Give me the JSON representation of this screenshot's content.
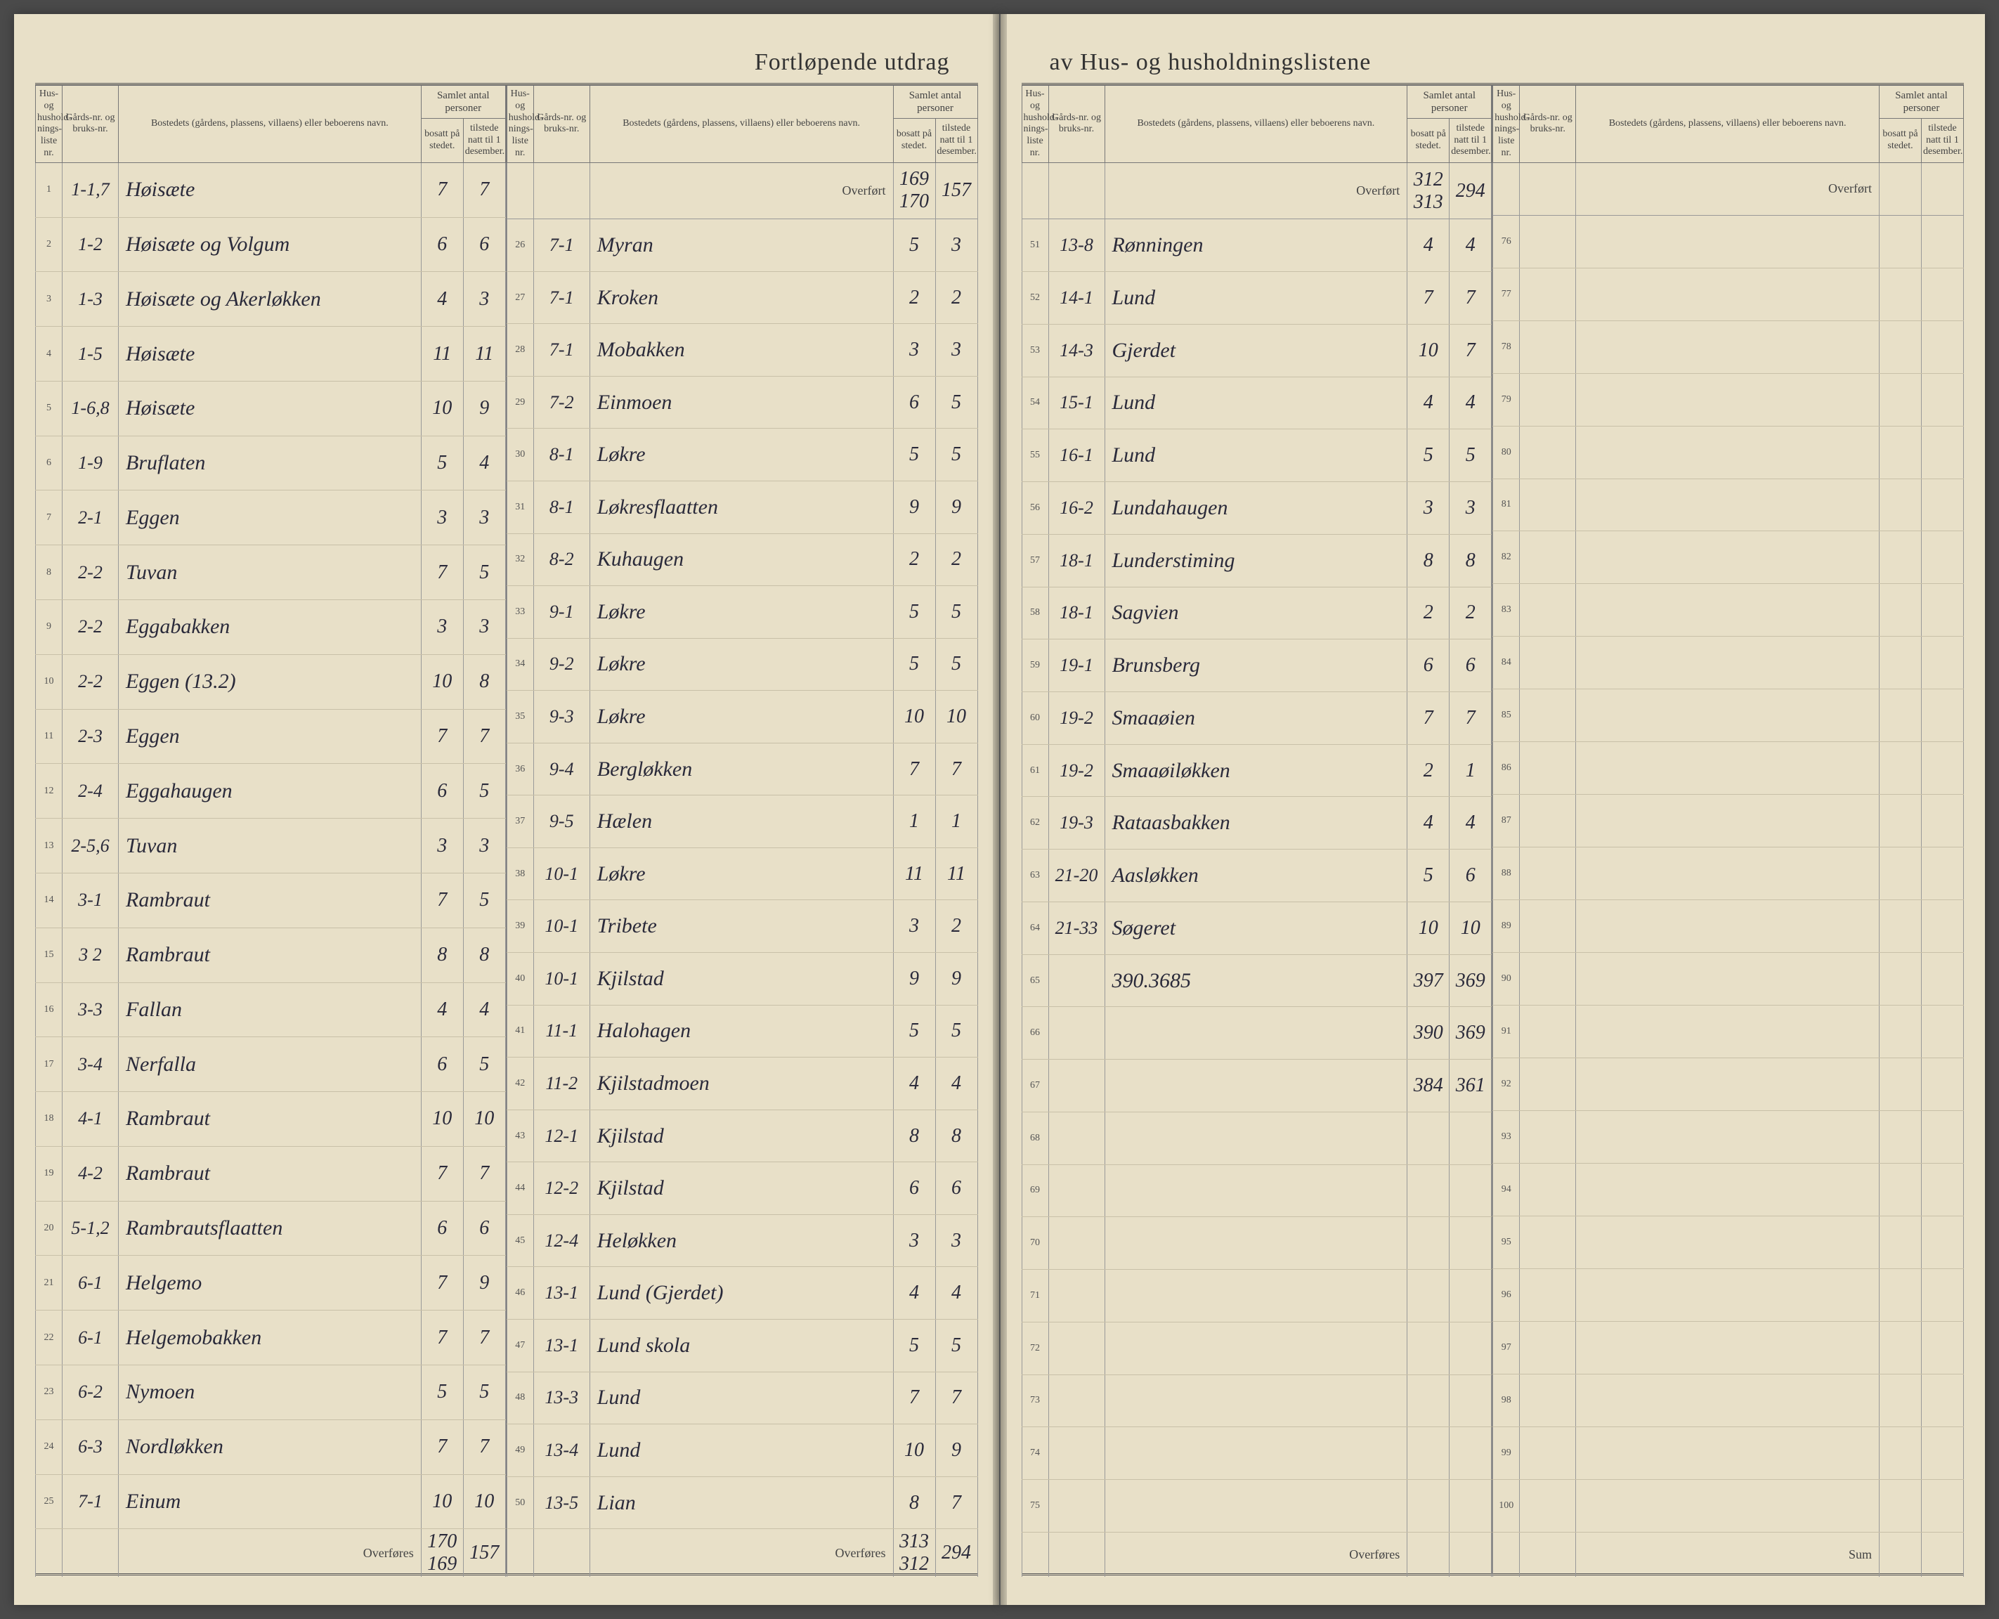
{
  "title_left": "Fortløpende utdrag",
  "title_right": "av Hus- og husholdningslistene",
  "headers": {
    "liste": "Hus- og hushold-nings-liste nr.",
    "gnr": "Gårds-nr. og bruks-nr.",
    "bosted": "Bostedets (gårdens, plassens, villaens) eller beboerens navn.",
    "samlet": "Samlet antal personer",
    "bosatt": "bosatt på stedet.",
    "tilstede": "tilstede natt til 1 desember."
  },
  "overfort_label": "Overført",
  "overfores_label": "Overføres",
  "sum_label": "Sum",
  "columns": [
    {
      "num": "1",
      "gnr": "1-1,7",
      "name": "Høisæte",
      "b": "7",
      "t": "7"
    },
    {
      "num": "2",
      "gnr": "1-2",
      "name": "Høisæte og Volgum",
      "b": "6",
      "t": "6"
    },
    {
      "num": "3",
      "gnr": "1-3",
      "name": "Høisæte og Akerløkken",
      "b": "4",
      "t": "3"
    },
    {
      "num": "4",
      "gnr": "1-5",
      "name": "Høisæte",
      "b": "11",
      "t": "11"
    },
    {
      "num": "5",
      "gnr": "1-6,8",
      "name": "Høisæte",
      "b": "10",
      "t": "9"
    },
    {
      "num": "6",
      "gnr": "1-9",
      "name": "Bruflaten",
      "b": "5",
      "t": "4"
    },
    {
      "num": "7",
      "gnr": "2-1",
      "name": "Eggen",
      "b": "3",
      "t": "3"
    },
    {
      "num": "8",
      "gnr": "2-2",
      "name": "Tuvan",
      "b": "7",
      "t": "5"
    },
    {
      "num": "9",
      "gnr": "2-2",
      "name": "Eggabakken",
      "b": "3",
      "t": "3"
    },
    {
      "num": "10",
      "gnr": "2-2",
      "name": "Eggen (13.2)",
      "b": "10",
      "t": "8"
    },
    {
      "num": "11",
      "gnr": "2-3",
      "name": "Eggen",
      "b": "7",
      "t": "7"
    },
    {
      "num": "12",
      "gnr": "2-4",
      "name": "Eggahaugen",
      "b": "6",
      "t": "5"
    },
    {
      "num": "13",
      "gnr": "2-5,6",
      "name": "Tuvan",
      "b": "3",
      "t": "3"
    },
    {
      "num": "14",
      "gnr": "3-1",
      "name": "Rambraut",
      "b": "7",
      "t": "5"
    },
    {
      "num": "15",
      "gnr": "3 2",
      "name": "Rambraut",
      "b": "8",
      "t": "8"
    },
    {
      "num": "16",
      "gnr": "3-3",
      "name": "Fallan",
      "b": "4",
      "t": "4"
    },
    {
      "num": "17",
      "gnr": "3-4",
      "name": "Nerfalla",
      "b": "6",
      "t": "5"
    },
    {
      "num": "18",
      "gnr": "4-1",
      "name": "Rambraut",
      "b": "10",
      "t": "10"
    },
    {
      "num": "19",
      "gnr": "4-2",
      "name": "Rambraut",
      "b": "7",
      "t": "7"
    },
    {
      "num": "20",
      "gnr": "5-1,2",
      "name": "Rambrautsflaatten",
      "b": "6",
      "t": "6"
    },
    {
      "num": "21",
      "gnr": "6-1",
      "name": "Helgemo",
      "b": "7",
      "t": "9"
    },
    {
      "num": "22",
      "gnr": "6-1",
      "name": "Helgemobakken",
      "b": "7",
      "t": "7"
    },
    {
      "num": "23",
      "gnr": "6-2",
      "name": "Nymoen",
      "b": "5",
      "t": "5"
    },
    {
      "num": "24",
      "gnr": "6-3",
      "name": "Nordløkken",
      "b": "7",
      "t": "7"
    },
    {
      "num": "25",
      "gnr": "7-1",
      "name": "Einum",
      "b": "10",
      "t": "10"
    }
  ],
  "col1_footer_b": "170 169",
  "col1_footer_t": "157",
  "col2_overfort_b": "169 170",
  "col2_overfort_t": "157",
  "columns2": [
    {
      "num": "26",
      "gnr": "7-1",
      "name": "Myran",
      "b": "5",
      "t": "3"
    },
    {
      "num": "27",
      "gnr": "7-1",
      "name": "Kroken",
      "b": "2",
      "t": "2"
    },
    {
      "num": "28",
      "gnr": "7-1",
      "name": "Mobakken",
      "b": "3",
      "t": "3"
    },
    {
      "num": "29",
      "gnr": "7-2",
      "name": "Einmoen",
      "b": "6",
      "t": "5"
    },
    {
      "num": "30",
      "gnr": "8-1",
      "name": "Løkre",
      "b": "5",
      "t": "5"
    },
    {
      "num": "31",
      "gnr": "8-1",
      "name": "Løkresflaatten",
      "b": "9",
      "t": "9"
    },
    {
      "num": "32",
      "gnr": "8-2",
      "name": "Kuhaugen",
      "b": "2",
      "t": "2"
    },
    {
      "num": "33",
      "gnr": "9-1",
      "name": "Løkre",
      "b": "5",
      "t": "5"
    },
    {
      "num": "34",
      "gnr": "9-2",
      "name": "Løkre",
      "b": "5",
      "t": "5"
    },
    {
      "num": "35",
      "gnr": "9-3",
      "name": "Løkre",
      "b": "10",
      "t": "10"
    },
    {
      "num": "36",
      "gnr": "9-4",
      "name": "Bergløkken",
      "b": "7",
      "t": "7"
    },
    {
      "num": "37",
      "gnr": "9-5",
      "name": "Hælen",
      "b": "1",
      "t": "1"
    },
    {
      "num": "38",
      "gnr": "10-1",
      "name": "Løkre",
      "b": "11",
      "t": "11"
    },
    {
      "num": "39",
      "gnr": "10-1",
      "name": "Tribete",
      "b": "3",
      "t": "2"
    },
    {
      "num": "40",
      "gnr": "10-1",
      "name": "Kjilstad",
      "b": "9",
      "t": "9"
    },
    {
      "num": "41",
      "gnr": "11-1",
      "name": "Halohagen",
      "b": "5",
      "t": "5"
    },
    {
      "num": "42",
      "gnr": "11-2",
      "name": "Kjilstadmoen",
      "b": "4",
      "t": "4"
    },
    {
      "num": "43",
      "gnr": "12-1",
      "name": "Kjilstad",
      "b": "8",
      "t": "8"
    },
    {
      "num": "44",
      "gnr": "12-2",
      "name": "Kjilstad",
      "b": "6",
      "t": "6"
    },
    {
      "num": "45",
      "gnr": "12-4",
      "name": "Heløkken",
      "b": "3",
      "t": "3"
    },
    {
      "num": "46",
      "gnr": "13-1",
      "name": "Lund (Gjerdet)",
      "b": "4",
      "t": "4"
    },
    {
      "num": "47",
      "gnr": "13-1",
      "name": "Lund skola",
      "b": "5",
      "t": "5"
    },
    {
      "num": "48",
      "gnr": "13-3",
      "name": "Lund",
      "b": "7",
      "t": "7"
    },
    {
      "num": "49",
      "gnr": "13-4",
      "name": "Lund",
      "b": "10",
      "t": "9"
    },
    {
      "num": "50",
      "gnr": "13-5",
      "name": "Lian",
      "b": "8",
      "t": "7"
    }
  ],
  "col2_footer_b": "313 312",
  "col2_footer_t": "294",
  "col3_overfort_b": "312 313",
  "col3_overfort_t": "294",
  "columns3": [
    {
      "num": "51",
      "gnr": "13-8",
      "name": "Rønningen",
      "b": "4",
      "t": "4"
    },
    {
      "num": "52",
      "gnr": "14-1",
      "name": "Lund",
      "b": "7",
      "t": "7"
    },
    {
      "num": "53",
      "gnr": "14-3",
      "name": "Gjerdet",
      "b": "10",
      "t": "7"
    },
    {
      "num": "54",
      "gnr": "15-1",
      "name": "Lund",
      "b": "4",
      "t": "4"
    },
    {
      "num": "55",
      "gnr": "16-1",
      "name": "Lund",
      "b": "5",
      "t": "5"
    },
    {
      "num": "56",
      "gnr": "16-2",
      "name": "Lundahaugen",
      "b": "3",
      "t": "3"
    },
    {
      "num": "57",
      "gnr": "18-1",
      "name": "Lunderstiming",
      "b": "8",
      "t": "8"
    },
    {
      "num": "58",
      "gnr": "18-1",
      "name": "Sagvien",
      "b": "2",
      "t": "2"
    },
    {
      "num": "59",
      "gnr": "19-1",
      "name": "Brunsberg",
      "b": "6",
      "t": "6"
    },
    {
      "num": "60",
      "gnr": "19-2",
      "name": "Smaaøien",
      "b": "7",
      "t": "7"
    },
    {
      "num": "61",
      "gnr": "19-2",
      "name": "Smaaøiløkken",
      "b": "2",
      "t": "1"
    },
    {
      "num": "62",
      "gnr": "19-3",
      "name": "Rataasbakken",
      "b": "4",
      "t": "4"
    },
    {
      "num": "63",
      "gnr": "21-20",
      "name": "Aasløkken",
      "b": "5",
      "t": "6"
    },
    {
      "num": "64",
      "gnr": "21-33",
      "name": "Søgeret",
      "b": "10",
      "t": "10"
    },
    {
      "num": "65",
      "gnr": "",
      "name": "390.3685",
      "b": "397",
      "t": "369"
    },
    {
      "num": "66",
      "gnr": "",
      "name": "",
      "b": "390",
      "t": "369"
    },
    {
      "num": "67",
      "gnr": "",
      "name": "",
      "b": "384",
      "t": "361"
    },
    {
      "num": "68",
      "gnr": "",
      "name": "",
      "b": "",
      "t": ""
    },
    {
      "num": "69",
      "gnr": "",
      "name": "",
      "b": "",
      "t": ""
    },
    {
      "num": "70",
      "gnr": "",
      "name": "",
      "b": "",
      "t": ""
    },
    {
      "num": "71",
      "gnr": "",
      "name": "",
      "b": "",
      "t": ""
    },
    {
      "num": "72",
      "gnr": "",
      "name": "",
      "b": "",
      "t": ""
    },
    {
      "num": "73",
      "gnr": "",
      "name": "",
      "b": "",
      "t": ""
    },
    {
      "num": "74",
      "gnr": "",
      "name": "",
      "b": "",
      "t": ""
    },
    {
      "num": "75",
      "gnr": "",
      "name": "",
      "b": "",
      "t": ""
    }
  ],
  "columns4": [
    {
      "num": "76",
      "gnr": "",
      "name": "",
      "b": "",
      "t": ""
    },
    {
      "num": "77",
      "gnr": "",
      "name": "",
      "b": "",
      "t": ""
    },
    {
      "num": "78",
      "gnr": "",
      "name": "",
      "b": "",
      "t": ""
    },
    {
      "num": "79",
      "gnr": "",
      "name": "",
      "b": "",
      "t": ""
    },
    {
      "num": "80",
      "gnr": "",
      "name": "",
      "b": "",
      "t": ""
    },
    {
      "num": "81",
      "gnr": "",
      "name": "",
      "b": "",
      "t": ""
    },
    {
      "num": "82",
      "gnr": "",
      "name": "",
      "b": "",
      "t": ""
    },
    {
      "num": "83",
      "gnr": "",
      "name": "",
      "b": "",
      "t": ""
    },
    {
      "num": "84",
      "gnr": "",
      "name": "",
      "b": "",
      "t": ""
    },
    {
      "num": "85",
      "gnr": "",
      "name": "",
      "b": "",
      "t": ""
    },
    {
      "num": "86",
      "gnr": "",
      "name": "",
      "b": "",
      "t": ""
    },
    {
      "num": "87",
      "gnr": "",
      "name": "",
      "b": "",
      "t": ""
    },
    {
      "num": "88",
      "gnr": "",
      "name": "",
      "b": "",
      "t": ""
    },
    {
      "num": "89",
      "gnr": "",
      "name": "",
      "b": "",
      "t": ""
    },
    {
      "num": "90",
      "gnr": "",
      "name": "",
      "b": "",
      "t": ""
    },
    {
      "num": "91",
      "gnr": "",
      "name": "",
      "b": "",
      "t": ""
    },
    {
      "num": "92",
      "gnr": "",
      "name": "",
      "b": "",
      "t": ""
    },
    {
      "num": "93",
      "gnr": "",
      "name": "",
      "b": "",
      "t": ""
    },
    {
      "num": "94",
      "gnr": "",
      "name": "",
      "b": "",
      "t": ""
    },
    {
      "num": "95",
      "gnr": "",
      "name": "",
      "b": "",
      "t": ""
    },
    {
      "num": "96",
      "gnr": "",
      "name": "",
      "b": "",
      "t": ""
    },
    {
      "num": "97",
      "gnr": "",
      "name": "",
      "b": "",
      "t": ""
    },
    {
      "num": "98",
      "gnr": "",
      "name": "",
      "b": "",
      "t": ""
    },
    {
      "num": "99",
      "gnr": "",
      "name": "",
      "b": "",
      "t": ""
    },
    {
      "num": "100",
      "gnr": "",
      "name": "",
      "b": "",
      "t": ""
    }
  ]
}
